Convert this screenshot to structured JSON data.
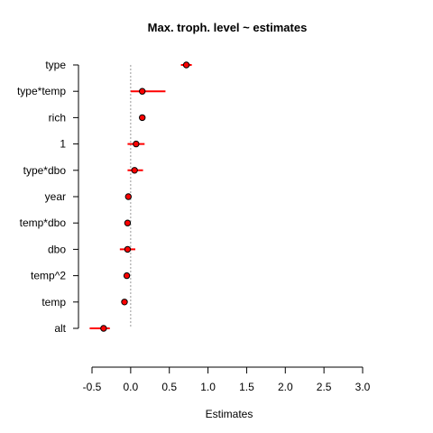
{
  "chart_data": {
    "type": "forest",
    "title": "Max. troph. level ~ estimates",
    "xlabel": "Estimates",
    "ylabel": "",
    "xlim": [
      -0.5,
      3.0
    ],
    "xticks": [
      -0.5,
      0.0,
      0.5,
      1.0,
      1.5,
      2.0,
      2.5,
      3.0
    ],
    "xtick_labels": [
      "-0.5",
      "0.0",
      "0.5",
      "1.0",
      "1.5",
      "2.0",
      "2.5",
      "3.0"
    ],
    "reference_line": 0,
    "grid": false,
    "colors": {
      "interval": "#ff0000",
      "point_fill": "#ff0000",
      "point_stroke": "#000000",
      "reference": "#999999",
      "axis": "#000000"
    },
    "categories": [
      "type",
      "type*temp",
      "rich",
      "1",
      "type*dbo",
      "year",
      "temp*dbo",
      "dbo",
      "temp^2",
      "temp",
      "alt"
    ],
    "estimates": [
      0.72,
      0.15,
      0.15,
      0.07,
      0.05,
      -0.03,
      -0.04,
      -0.04,
      -0.05,
      -0.08,
      -0.35
    ],
    "lower": [
      0.65,
      0.0,
      0.12,
      -0.04,
      -0.04,
      -0.05,
      -0.07,
      -0.14,
      -0.07,
      -0.1,
      -0.53
    ],
    "upper": [
      0.79,
      0.45,
      0.18,
      0.18,
      0.16,
      -0.01,
      -0.01,
      0.06,
      -0.03,
      -0.06,
      -0.27
    ]
  }
}
